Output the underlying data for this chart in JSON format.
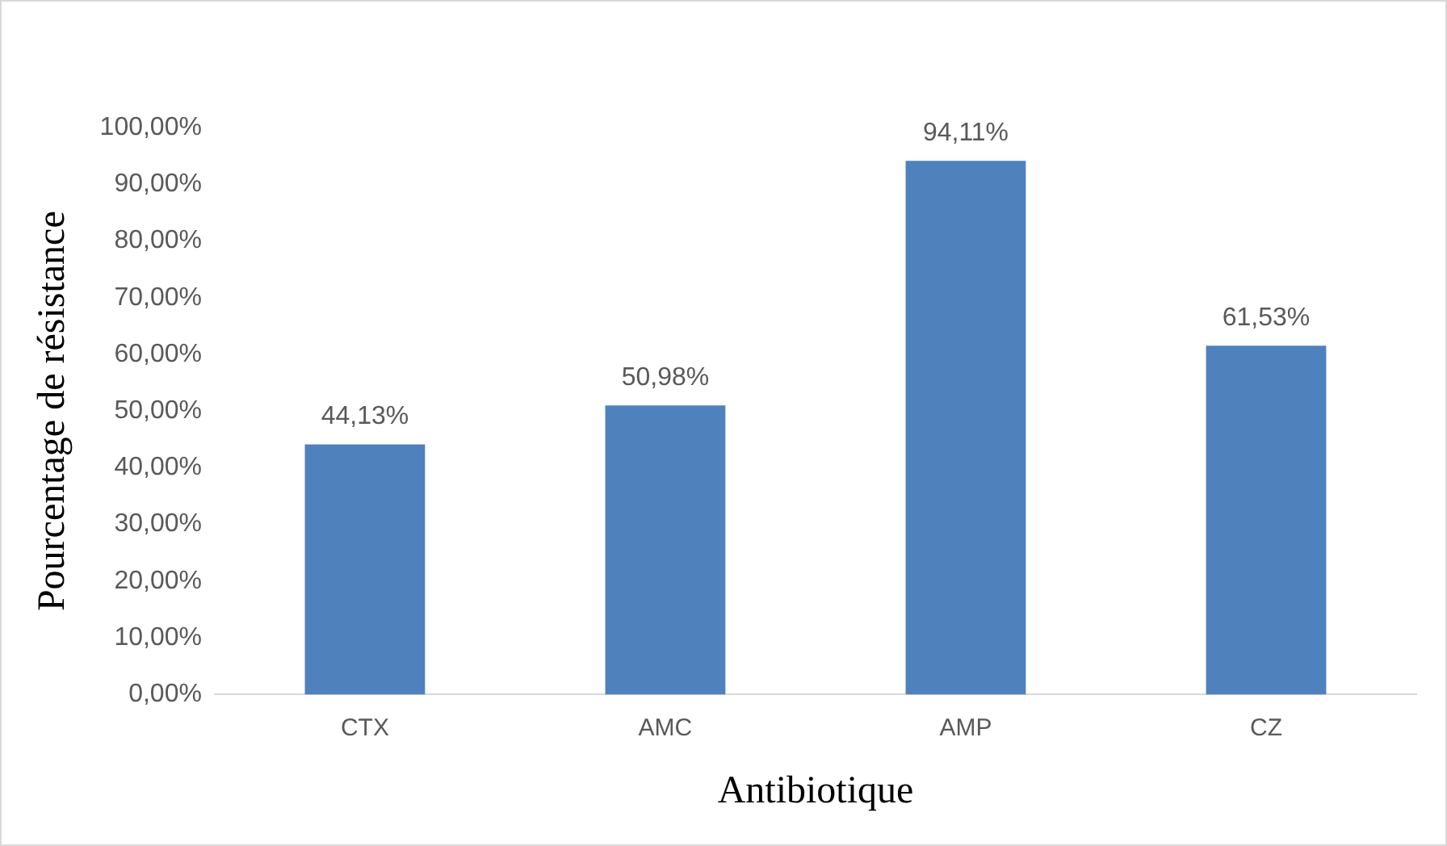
{
  "chart_data": {
    "type": "bar",
    "xlabel": "Antibiotique",
    "ylabel": "Pourcentage de résistance",
    "categories": [
      "CTX",
      "AMC",
      "AMP",
      "CZ"
    ],
    "values": [
      44.13,
      50.98,
      94.11,
      61.53
    ],
    "value_labels": [
      "44,13%",
      "50,98%",
      "94,11%",
      "61,53%"
    ],
    "color": "#4f81bd",
    "ylim": [
      0,
      100
    ],
    "yticks": [
      {
        "value": 0,
        "label": "0,00%"
      },
      {
        "value": 10,
        "label": "10,00%"
      },
      {
        "value": 20,
        "label": "20,00%"
      },
      {
        "value": 30,
        "label": "30,00%"
      },
      {
        "value": 40,
        "label": "40,00%"
      },
      {
        "value": 50,
        "label": "50,00%"
      },
      {
        "value": 60,
        "label": "60,00%"
      },
      {
        "value": 70,
        "label": "70,00%"
      },
      {
        "value": 80,
        "label": "80,00%"
      },
      {
        "value": 90,
        "label": "90,00%"
      },
      {
        "value": 100,
        "label": "100,00%"
      }
    ],
    "grid": false,
    "legend": false
  }
}
